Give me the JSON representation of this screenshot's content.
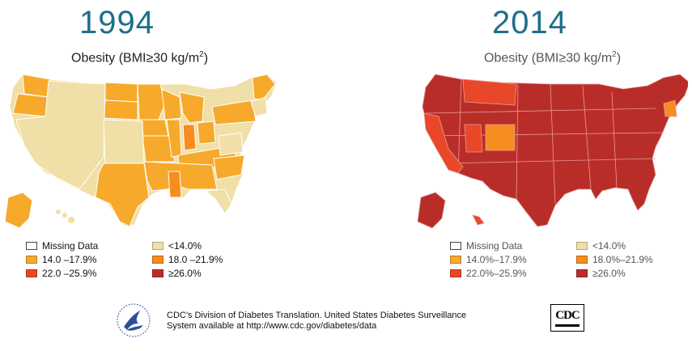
{
  "colors": {
    "missing": "#ffffff",
    "c1": "#f0dfa6",
    "c2": "#f7a92b",
    "c3": "#f78d1f",
    "c4": "#e9472a",
    "c5": "#b92d28",
    "title": "#1d6f8a"
  },
  "panels": [
    {
      "year": "1994",
      "subtitle_main": "Obesity (BMI≥30 kg/m",
      "subtitle_sup": "2",
      "subtitle_end": ")",
      "legend": [
        {
          "label": "Missing Data",
          "color": "#ffffff"
        },
        {
          "label": "<14.0%",
          "color": "#f0dfa6"
        },
        {
          "label": "14.0 –17.9%",
          "color": "#f7a92b"
        },
        {
          "label": "18.0 –21.9%",
          "color": "#f78d1f"
        },
        {
          "label": "22.0 –25.9%",
          "color": "#e9472a"
        },
        {
          "label": "≥26.0%",
          "color": "#b92d28"
        }
      ]
    },
    {
      "year": "2014",
      "subtitle_main": "Obesity (BMI≥30 kg/m",
      "subtitle_sup": "2",
      "subtitle_end": ")",
      "legend": [
        {
          "label": "Missing Data",
          "color": "#ffffff"
        },
        {
          "label": "<14.0%",
          "color": "#f0dfa6"
        },
        {
          "label": "14.0%–17.9%",
          "color": "#f7a92b"
        },
        {
          "label": "18.0%–21.9%",
          "color": "#f78d1f"
        },
        {
          "label": "22.0%–25.9%",
          "color": "#e9472a"
        },
        {
          "label": "≥26.0%",
          "color": "#b92d28"
        }
      ]
    }
  ],
  "footer": {
    "credit_line1": "CDC's Division of Diabetes Translation. United States Diabetes Surveillance",
    "credit_line2": "System available at http://www.cdc.gov/diabetes/data",
    "cdc_logo_text": "CDC",
    "hhs_logo_icon": "hhs-eagle-icon"
  }
}
